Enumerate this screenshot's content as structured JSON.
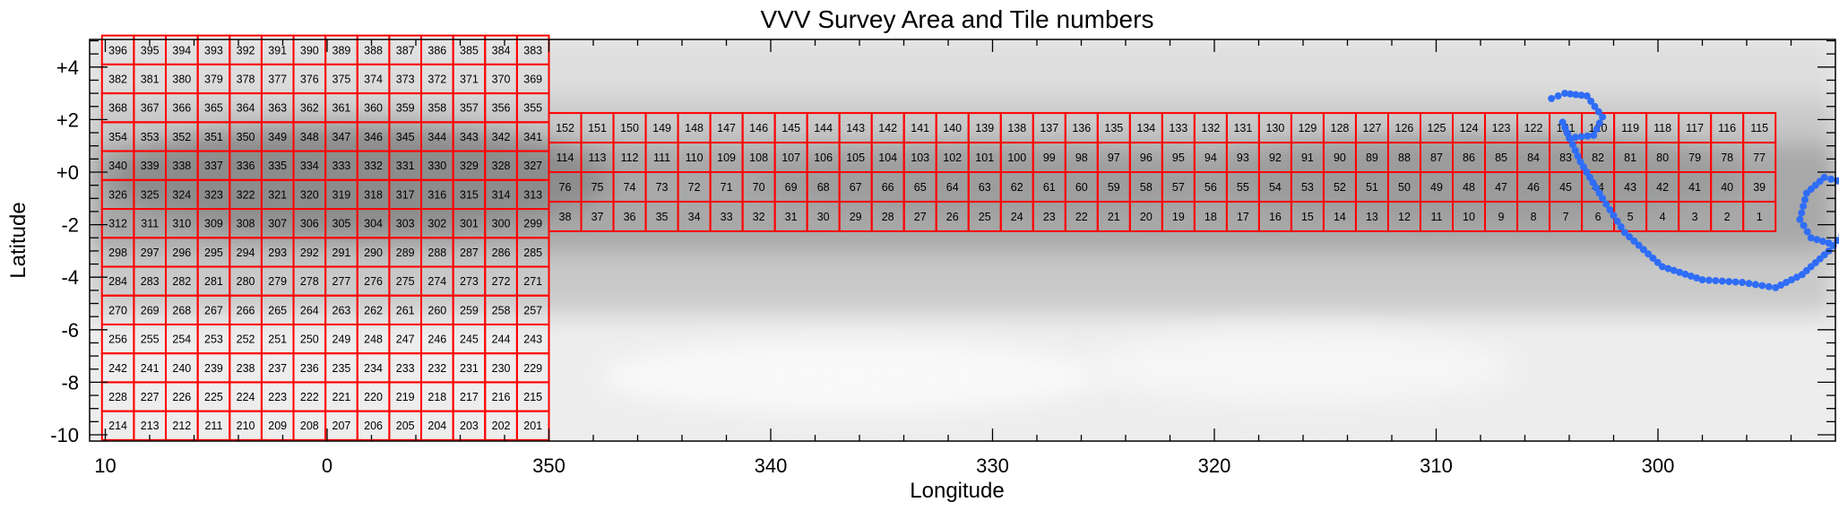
{
  "chart_data": {
    "type": "scatter",
    "title": "VVV Survey Area and Tile numbers",
    "xlabel": "Longitude",
    "ylabel": "Latitude",
    "x_axis": {
      "direction": "decreasing",
      "range_display": [
        10,
        -63
      ],
      "tick_labels": [
        "10",
        "0",
        "350",
        "340",
        "330",
        "320",
        "310",
        "300"
      ],
      "tick_longitudes": [
        10,
        0,
        -10,
        -20,
        -30,
        -40,
        -50,
        -60
      ]
    },
    "y_axis": {
      "range": [
        -10.3,
        5.2
      ],
      "tick_labels": [
        "+4",
        "+2",
        "+0",
        "-2",
        "-4",
        "-6",
        "-8",
        "-10"
      ],
      "tick_values": [
        4,
        2,
        0,
        -2,
        -4,
        -6,
        -8,
        -10
      ]
    },
    "bulge_tiles": {
      "first_tile": 201,
      "last_tile": 396,
      "columns": 14,
      "rows": 14,
      "l_min": -10.0,
      "l_max": 10.15,
      "b_min": -10.2,
      "b_max": 5.2
    },
    "disk_tiles": {
      "first_tile": 1,
      "last_tile": 152,
      "columns": 38,
      "rows": 4,
      "l_min": -65.3,
      "l_max": -10.0,
      "b_min": -2.25,
      "b_max": 2.25
    },
    "background": "greyscale extinction map of the Galactic plane",
    "overlay_path": {
      "color": "#2f6df6",
      "points": [
        [
          -55.2,
          2.8
        ],
        [
          -55.8,
          3.0
        ],
        [
          -56.8,
          2.9
        ],
        [
          -57.5,
          2.1
        ],
        [
          -57.1,
          1.4
        ],
        [
          -56.0,
          1.3
        ],
        [
          -55.7,
          1.9
        ],
        [
          -56.5,
          0.4
        ],
        [
          -57.5,
          -1.0
        ],
        [
          -58.5,
          -2.3
        ],
        [
          -60.2,
          -3.6
        ],
        [
          -62.0,
          -4.1
        ],
        [
          -63.8,
          -4.2
        ],
        [
          -65.3,
          -4.4
        ],
        [
          -66.5,
          -3.9
        ],
        [
          -67.7,
          -3.0
        ],
        [
          -68.5,
          -2.2
        ],
        [
          -68.8,
          -1.2
        ],
        [
          -68.4,
          -0.4
        ],
        [
          -67.5,
          -0.2
        ],
        [
          -66.7,
          -0.8
        ],
        [
          -66.4,
          -1.8
        ],
        [
          -66.9,
          -2.5
        ],
        [
          -67.7,
          -2.7
        ]
      ]
    }
  }
}
